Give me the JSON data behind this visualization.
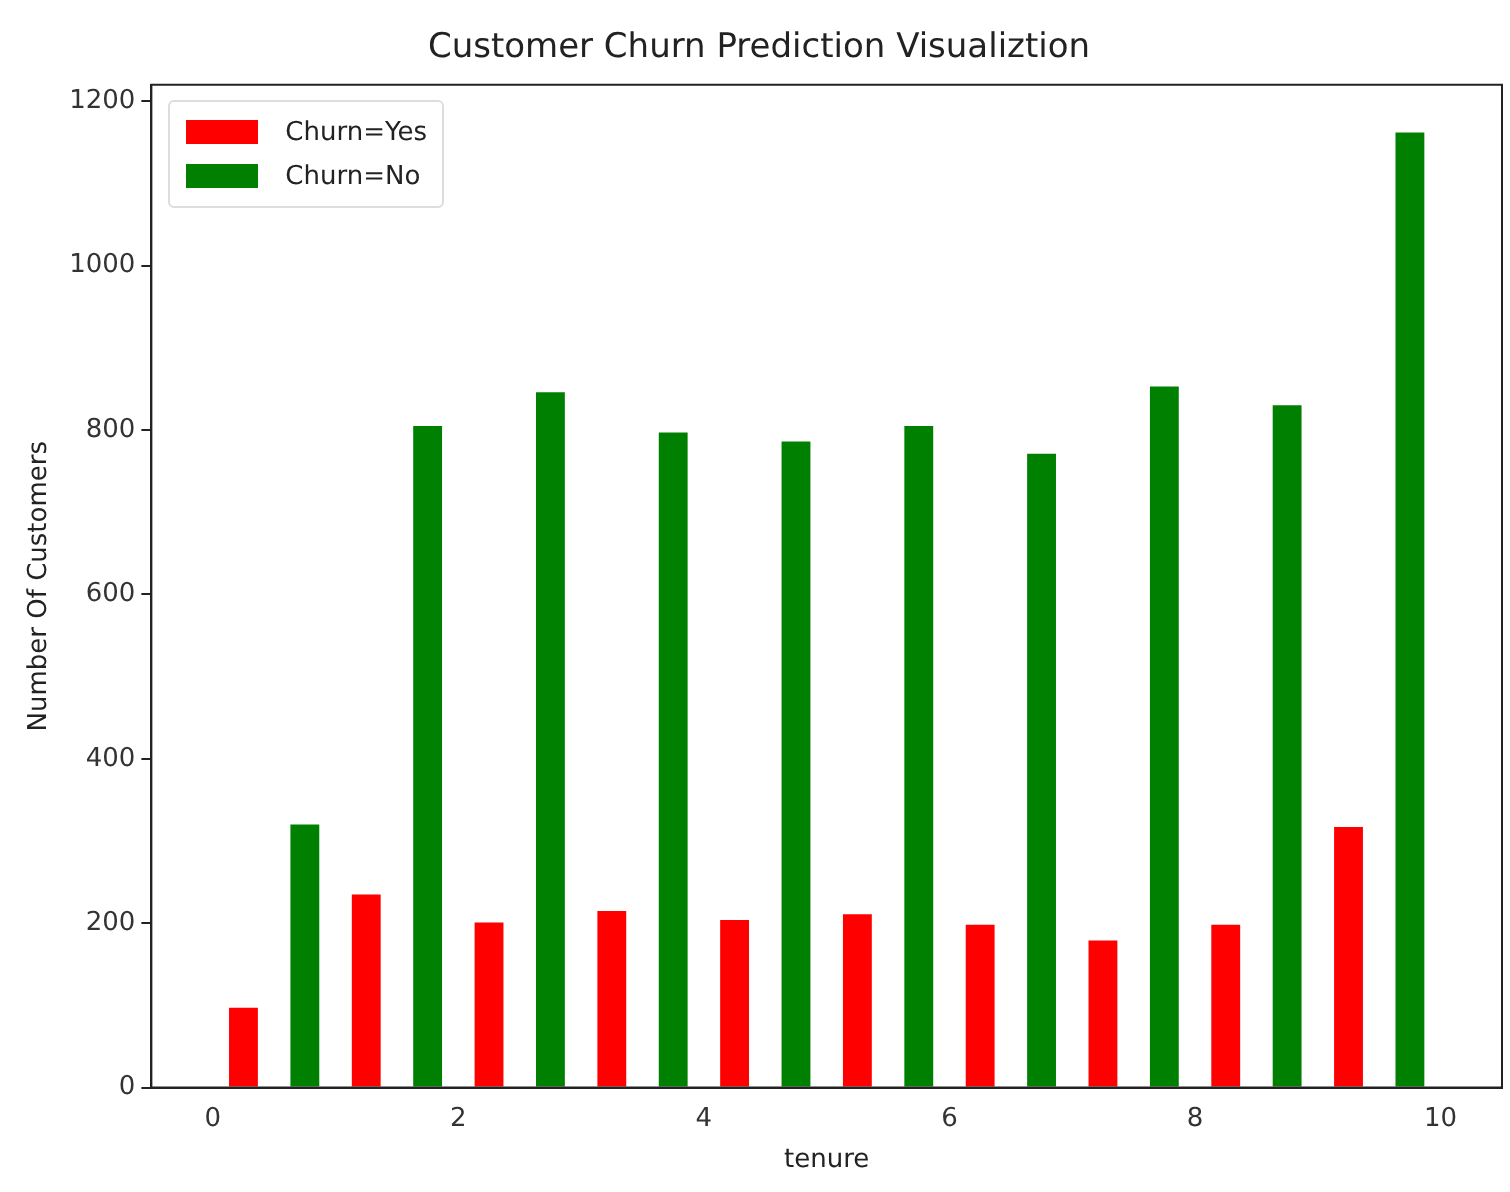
{
  "chart_data": {
    "type": "histogram",
    "title": "Customer Churn Prediction Visualiztion",
    "xlabel": "tenure",
    "ylabel": "Number Of Customers",
    "bins": [
      0,
      1,
      2,
      3,
      4,
      5,
      6,
      7,
      8,
      9,
      10
    ],
    "series": [
      {
        "name": "Churn=Yes",
        "color": "#ff0000",
        "values": [
          97,
          235,
          201,
          215,
          204,
          211,
          198,
          179,
          198,
          317
        ]
      },
      {
        "name": "Churn=No",
        "color": "#008000",
        "values": [
          320,
          805,
          846,
          797,
          786,
          805,
          771,
          853,
          830,
          1162
        ]
      }
    ],
    "xlim": [
      -0.5,
      10.5
    ],
    "xticks": [
      0,
      2,
      4,
      6,
      8,
      10
    ],
    "ylim": [
      0,
      1220
    ],
    "yticks": [
      0,
      200,
      400,
      600,
      800,
      1000,
      1200
    ],
    "grid": false,
    "legend": "top left"
  }
}
